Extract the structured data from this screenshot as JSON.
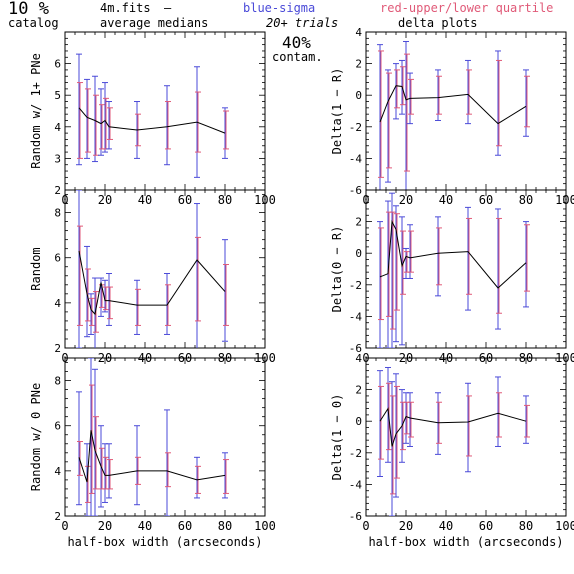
{
  "header": {
    "percent": "10 %",
    "catalog": "catalog",
    "file": "4m.fits",
    "dash": "–",
    "medians": "average medians",
    "sigma": "blue-sigma",
    "quartile": "red-upper/lower quartile",
    "trials": "20+ trials",
    "delta": "delta plots",
    "contam_pct": "40%",
    "contam": "contam."
  },
  "colors": {
    "sigma": "#4a4ad8",
    "quartile": "#e05a78",
    "line": "#000000"
  },
  "chart_data": [
    {
      "type": "line",
      "id": "p1",
      "ylabel": "Random w/ 1+ PNe",
      "xlabel": "",
      "xlim": [
        0,
        100
      ],
      "ylim": [
        2,
        7
      ],
      "xticks": [
        0,
        20,
        40,
        60,
        80,
        100
      ],
      "yticks": [
        2,
        3,
        4,
        5,
        6
      ],
      "x": [
        7,
        11,
        15,
        18,
        20,
        22,
        36,
        51,
        66,
        80
      ],
      "y": [
        4.6,
        4.3,
        4.2,
        4.1,
        4.2,
        4.0,
        3.9,
        4.0,
        4.15,
        3.8
      ],
      "sigma": [
        [
          2.8,
          6.3
        ],
        [
          3.0,
          5.5
        ],
        [
          2.9,
          5.6
        ],
        [
          3.1,
          5.2
        ],
        [
          3.2,
          5.4
        ],
        [
          3.3,
          4.8
        ],
        [
          3.0,
          4.8
        ],
        [
          2.8,
          5.3
        ],
        [
          2.4,
          5.9
        ],
        [
          3.0,
          4.6
        ]
      ],
      "quartile": [
        [
          3.0,
          5.4
        ],
        [
          3.2,
          5.2
        ],
        [
          3.1,
          5.0
        ],
        [
          3.3,
          4.7
        ],
        [
          3.3,
          4.9
        ],
        [
          3.6,
          4.6
        ],
        [
          3.4,
          4.4
        ],
        [
          3.3,
          4.8
        ],
        [
          3.2,
          5.1
        ],
        [
          3.3,
          4.5
        ]
      ]
    },
    {
      "type": "line",
      "id": "p2",
      "ylabel": "Delta(1 − R)",
      "xlabel": "",
      "xlim": [
        0,
        100
      ],
      "ylim": [
        -6,
        4
      ],
      "xticks": [
        0,
        20,
        40,
        60,
        80,
        100
      ],
      "yticks": [
        -6,
        -4,
        -2,
        0,
        2,
        4
      ],
      "x": [
        7,
        11,
        15,
        18,
        20,
        22,
        36,
        51,
        66,
        80
      ],
      "y": [
        -1.7,
        -0.4,
        0.6,
        0.55,
        -0.3,
        -0.2,
        -0.15,
        0.05,
        -1.8,
        -0.7
      ],
      "sigma": [
        [
          -6,
          3.2
        ],
        [
          -5.5,
          1.6
        ],
        [
          -1.5,
          2.0
        ],
        [
          -1.2,
          2.2
        ],
        [
          -6,
          3.4
        ],
        [
          -1.8,
          1.4
        ],
        [
          -1.6,
          1.6
        ],
        [
          -1.8,
          2.2
        ],
        [
          -3.8,
          2.8
        ],
        [
          -2.6,
          1.6
        ]
      ],
      "quartile": [
        [
          -5.2,
          2.8
        ],
        [
          -4.6,
          1.4
        ],
        [
          -0.8,
          1.6
        ],
        [
          -0.6,
          1.8
        ],
        [
          -4.8,
          2.6
        ],
        [
          -1.2,
          1.0
        ],
        [
          -1.2,
          1.2
        ],
        [
          -1.2,
          1.6
        ],
        [
          -3.2,
          2.2
        ],
        [
          -2.0,
          1.2
        ]
      ]
    },
    {
      "type": "line",
      "id": "p3",
      "ylabel": "Random",
      "xlabel": "",
      "xlim": [
        0,
        100
      ],
      "ylim": [
        2,
        9
      ],
      "xticks": [
        0,
        20,
        40,
        60,
        80,
        100
      ],
      "yticks": [
        2,
        4,
        6,
        8
      ],
      "x": [
        7,
        11,
        13,
        15,
        18,
        20,
        22,
        36,
        51,
        66,
        80
      ],
      "y": [
        6.3,
        4.4,
        3.7,
        3.5,
        4.9,
        4.1,
        4.1,
        3.9,
        3.9,
        5.9,
        4.5
      ],
      "sigma": [
        [
          2.0,
          9.0
        ],
        [
          2.5,
          6.5
        ],
        [
          2.6,
          4.4
        ],
        [
          1.9,
          5.1
        ],
        [
          3.4,
          5.1
        ],
        [
          3.6,
          5.0
        ],
        [
          3.0,
          5.3
        ],
        [
          2.6,
          5.0
        ],
        [
          2.6,
          5.3
        ],
        [
          1.8,
          8.4
        ],
        [
          2.3,
          6.8
        ]
      ],
      "quartile": [
        [
          3.0,
          7.4
        ],
        [
          3.2,
          5.5
        ],
        [
          3.0,
          4.2
        ],
        [
          2.7,
          4.5
        ],
        [
          3.8,
          4.8
        ],
        [
          3.7,
          4.7
        ],
        [
          3.3,
          4.7
        ],
        [
          3.0,
          4.6
        ],
        [
          3.0,
          4.8
        ],
        [
          3.2,
          6.9
        ],
        [
          3.0,
          5.7
        ]
      ]
    },
    {
      "type": "line",
      "id": "p4",
      "ylabel": "Delta(0 − R)",
      "xlabel": "",
      "xlim": [
        0,
        100
      ],
      "ylim": [
        -6,
        4
      ],
      "xticks": [
        0,
        20,
        40,
        60,
        80,
        100
      ],
      "yticks": [
        -6,
        -4,
        -2,
        0,
        2
      ],
      "x": [
        7,
        11,
        13,
        15,
        18,
        20,
        22,
        36,
        51,
        66,
        80
      ],
      "y": [
        -1.5,
        -1.3,
        2.0,
        1.5,
        -0.8,
        -0.2,
        -0.3,
        0.0,
        0.1,
        -2.2,
        -0.6
      ],
      "sigma": [
        [
          -6,
          2.0
        ],
        [
          -6,
          3.3
        ],
        [
          -6,
          3.8
        ],
        [
          -5.6,
          3.0
        ],
        [
          -5.8,
          2.3
        ],
        [
          -1.6,
          0.3
        ],
        [
          -1.6,
          1.8
        ],
        [
          -2.7,
          2.3
        ],
        [
          -3.6,
          2.9
        ],
        [
          -4.8,
          2.8
        ],
        [
          -3.4,
          2.0
        ]
      ],
      "quartile": [
        [
          -4.2,
          1.6
        ],
        [
          -4.0,
          2.6
        ],
        [
          -4.8,
          2.6
        ],
        [
          -3.6,
          2.5
        ],
        [
          -2.6,
          1.4
        ],
        [
          -1.2,
          0.1
        ],
        [
          -1.2,
          1.4
        ],
        [
          -2.0,
          1.6
        ],
        [
          -2.6,
          2.2
        ],
        [
          -3.8,
          2.2
        ],
        [
          -2.4,
          1.8
        ]
      ]
    },
    {
      "type": "line",
      "id": "p5",
      "ylabel": "Random w/ 0 PNe",
      "xlabel": "half-box width (arcseconds)",
      "xlim": [
        0,
        100
      ],
      "ylim": [
        2,
        9
      ],
      "xticks": [
        0,
        20,
        40,
        60,
        80,
        100
      ],
      "yticks": [
        2,
        4,
        6,
        8
      ],
      "x": [
        7,
        11,
        13,
        15,
        18,
        20,
        22,
        36,
        51,
        66,
        80
      ],
      "y": [
        4.6,
        3.5,
        5.8,
        4.9,
        4.2,
        3.8,
        3.8,
        4.0,
        4.0,
        3.6,
        3.8
      ],
      "sigma": [
        [
          2.5,
          7.5
        ],
        [
          2.0,
          5.2
        ],
        [
          2.0,
          9.0
        ],
        [
          2.0,
          8.5
        ],
        [
          2.4,
          6.0
        ],
        [
          2.6,
          5.2
        ],
        [
          2.8,
          5.2
        ],
        [
          2.5,
          6.0
        ],
        [
          2.0,
          6.7
        ],
        [
          2.8,
          4.6
        ],
        [
          2.8,
          4.8
        ]
      ],
      "quartile": [
        [
          3.8,
          5.3
        ],
        [
          2.6,
          4.2
        ],
        [
          3.0,
          7.8
        ],
        [
          3.2,
          6.4
        ],
        [
          3.2,
          5.0
        ],
        [
          3.2,
          4.6
        ],
        [
          3.2,
          4.5
        ],
        [
          3.4,
          4.6
        ],
        [
          3.3,
          4.8
        ],
        [
          3.0,
          4.2
        ],
        [
          3.0,
          4.5
        ]
      ]
    },
    {
      "type": "line",
      "id": "p6",
      "ylabel": "Delta(1 − 0)",
      "xlabel": "half-box width (arcseconds)",
      "xlim": [
        0,
        100
      ],
      "ylim": [
        -6,
        4
      ],
      "xticks": [
        0,
        20,
        40,
        60,
        80,
        100
      ],
      "yticks": [
        -6,
        -4,
        -2,
        0,
        2,
        4
      ],
      "x": [
        7,
        11,
        13,
        15,
        18,
        20,
        22,
        36,
        51,
        66,
        80
      ],
      "y": [
        0.0,
        0.8,
        -1.6,
        -0.8,
        -0.3,
        0.3,
        0.2,
        -0.1,
        -0.05,
        0.5,
        0.0
      ],
      "sigma": [
        [
          -3.5,
          3.2
        ],
        [
          -2.6,
          3.4
        ],
        [
          -6,
          2.5
        ],
        [
          -4.8,
          3.0
        ],
        [
          -2.6,
          2.0
        ],
        [
          -1.4,
          1.8
        ],
        [
          -1.6,
          1.8
        ],
        [
          -2.1,
          1.8
        ],
        [
          -3.2,
          2.4
        ],
        [
          -1.6,
          2.8
        ],
        [
          -1.4,
          1.6
        ]
      ],
      "quartile": [
        [
          -2.4,
          2.2
        ],
        [
          -1.8,
          2.4
        ],
        [
          -4.6,
          1.6
        ],
        [
          -3.6,
          2.2
        ],
        [
          -1.8,
          1.2
        ],
        [
          -0.8,
          1.2
        ],
        [
          -1.0,
          1.2
        ],
        [
          -1.4,
          1.2
        ],
        [
          -2.2,
          1.6
        ],
        [
          -1.0,
          1.8
        ],
        [
          -1.0,
          1.0
        ]
      ]
    }
  ]
}
